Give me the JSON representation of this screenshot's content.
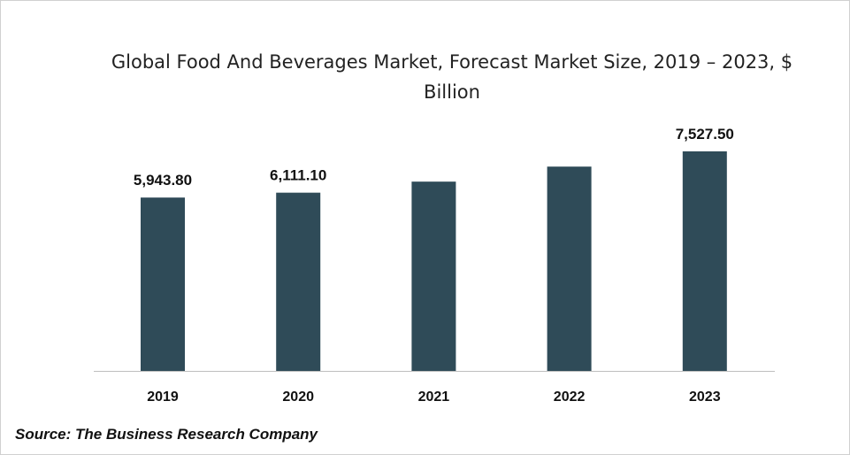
{
  "chart_data": {
    "type": "bar",
    "title": "Global Food And Beverages Market, Forecast Market Size, 2019 – 2023, $ Billion",
    "categories": [
      "2019",
      "2020",
      "2021",
      "2022",
      "2023"
    ],
    "values": [
      5943.8,
      6111.1,
      6490,
      7005,
      7527.5
    ],
    "data_labels": [
      "5,943.80",
      "6,111.10",
      "",
      "",
      "7,527.50"
    ],
    "xlabel": "",
    "ylabel": "",
    "ylim": [
      0,
      7600
    ],
    "grid": false,
    "bar_color": "#2f4b58"
  },
  "source": "Source: The Business Research Company"
}
